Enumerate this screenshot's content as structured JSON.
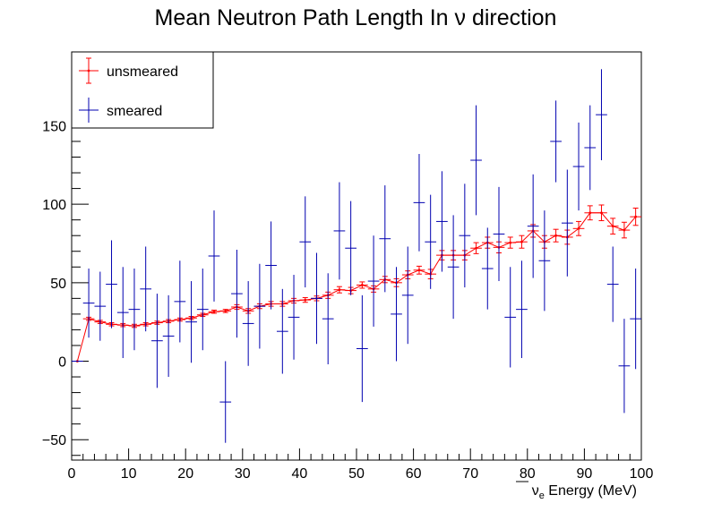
{
  "chart_data": {
    "type": "scatter",
    "title": "Mean Neutron Path Length In   ν direction",
    "xlabel": {
      "main": "ν",
      "sub": "e",
      "rest": " Energy (MeV)"
    },
    "ylabel": "",
    "xlim": [
      0,
      100
    ],
    "ylim": [
      -63,
      197
    ],
    "xticks": [
      0,
      10,
      20,
      30,
      40,
      50,
      60,
      70,
      80,
      90,
      100
    ],
    "yticks": [
      -50,
      0,
      50,
      100,
      150
    ],
    "xtick_labels": [
      "0",
      "10",
      "20",
      "30",
      "40",
      "50",
      "60",
      "70",
      "80",
      "90",
      "100"
    ],
    "ytick_labels": [
      "−50",
      "0",
      "50",
      "100",
      "150"
    ],
    "grid": false,
    "legend_position": "top-left",
    "bin_width": 2,
    "series": [
      {
        "name": "unsmeared",
        "color": "#ff0000",
        "draw_line": true,
        "x": [
          1,
          3,
          5,
          7,
          9,
          11,
          13,
          15,
          17,
          19,
          21,
          23,
          25,
          27,
          29,
          31,
          33,
          35,
          37,
          39,
          41,
          43,
          45,
          47,
          49,
          51,
          53,
          55,
          57,
          59,
          61,
          63,
          65,
          67,
          69,
          71,
          73,
          75,
          77,
          79,
          81,
          83,
          85,
          87,
          89,
          91,
          93,
          95,
          97,
          99
        ],
        "y": [
          0,
          27,
          25,
          23.5,
          23,
          22.5,
          23.5,
          24.5,
          25.5,
          26.5,
          27.5,
          29.5,
          31.5,
          32,
          34.5,
          32,
          35,
          36.5,
          36.5,
          38.5,
          39,
          40,
          42,
          45.5,
          45,
          48.5,
          46,
          52,
          50,
          55,
          58,
          55.5,
          67.5,
          67.5,
          67.5,
          72,
          75.5,
          72.5,
          75.5,
          76,
          83,
          76,
          80,
          79,
          84.5,
          94.5,
          94.5,
          86,
          83.5,
          92
        ],
        "err": [
          0,
          1,
          1,
          1,
          1,
          1,
          1,
          1,
          1,
          1,
          1,
          1,
          1,
          1,
          1.5,
          1.5,
          1.5,
          1.5,
          1.5,
          1.5,
          1.5,
          1.5,
          2,
          2,
          2,
          2,
          2,
          2,
          2.5,
          2.5,
          2.5,
          3,
          3,
          3,
          3,
          3.5,
          3.5,
          3.5,
          3.5,
          4,
          4,
          4,
          4,
          4.5,
          4.5,
          4.5,
          5,
          5,
          5,
          5.5
        ]
      },
      {
        "name": "smeared",
        "color": "#0000b0",
        "draw_line": false,
        "x": [
          1,
          3,
          5,
          7,
          9,
          11,
          13,
          15,
          17,
          19,
          21,
          23,
          25,
          27,
          29,
          31,
          33,
          35,
          37,
          39,
          41,
          43,
          45,
          47,
          49,
          51,
          53,
          55,
          57,
          59,
          61,
          63,
          65,
          67,
          69,
          71,
          73,
          75,
          77,
          79,
          81,
          83,
          85,
          87,
          89,
          91,
          93,
          95,
          97,
          99
        ],
        "y": [
          0,
          37,
          35,
          49,
          31,
          33,
          46,
          13,
          16,
          38,
          25,
          33,
          67,
          -26,
          43,
          24,
          35,
          61,
          19,
          28,
          76,
          40,
          27,
          83,
          72,
          8,
          51,
          78,
          30,
          42,
          101,
          76,
          89,
          60,
          80,
          128,
          59,
          81,
          28,
          33,
          86,
          64,
          140,
          88,
          124,
          136,
          157,
          49,
          -3,
          27
        ],
        "err": [
          0,
          22,
          22,
          28,
          29,
          26,
          27,
          30,
          26,
          26,
          26,
          26,
          29,
          26,
          28,
          27,
          27,
          28,
          27,
          27,
          29,
          29,
          29,
          31,
          30,
          34,
          29,
          34,
          30,
          31,
          31,
          30,
          32,
          33,
          33,
          35,
          26,
          30,
          32,
          31,
          33,
          32,
          26,
          34,
          28,
          27,
          29,
          24,
          30,
          32
        ]
      }
    ]
  }
}
